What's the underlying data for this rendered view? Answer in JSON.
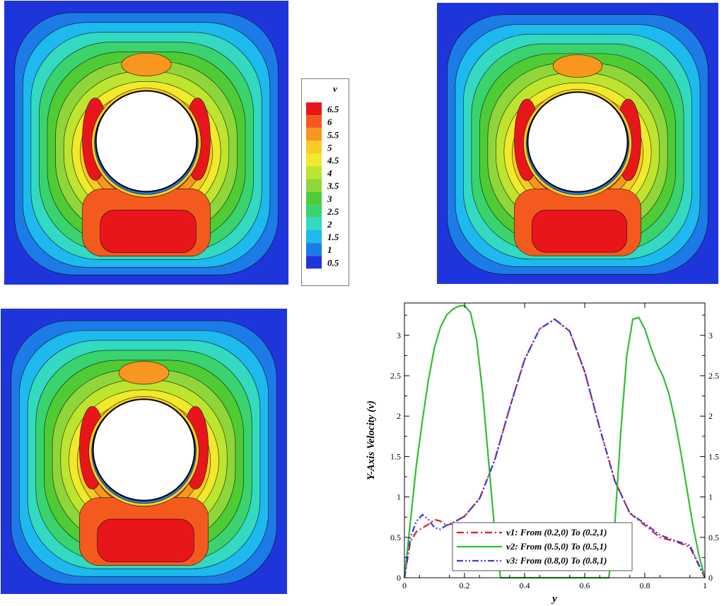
{
  "colorbar": {
    "title": "v",
    "levels": [
      "6.5",
      "6",
      "5.5",
      "5",
      "4.5",
      "4",
      "3.5",
      "3",
      "2.5",
      "2",
      "1.5",
      "1",
      "0.5"
    ],
    "colors": [
      "#e8161b",
      "#f45a1e",
      "#f8961f",
      "#f9cb24",
      "#f0e92c",
      "#bde42f",
      "#8ed63a",
      "#4fcb36",
      "#3ad36e",
      "#33d9c0",
      "#1db9ef",
      "#1c7be6",
      "#1f35dc"
    ]
  },
  "contour_palette": [
    "#1f35dc",
    "#1c7be6",
    "#1db9ef",
    "#33d9c0",
    "#3ad36e",
    "#4fcb36",
    "#8ed63a",
    "#bde42f",
    "#f0e92c",
    "#f9cb24",
    "#f8961f",
    "#f45a1e",
    "#e8161b"
  ],
  "chart_data": {
    "type": "line",
    "xlabel": "y",
    "ylabel": "Y-Axis Velocity (v)",
    "xlim": [
      0,
      1
    ],
    "ylim": [
      0,
      3.4
    ],
    "x_ticks": [
      "0",
      "0.2",
      "0.4",
      "0.6",
      "0.8",
      "1"
    ],
    "y_ticks": [
      "0",
      "0.5",
      "1",
      "1.5",
      "2",
      "2.5",
      "3"
    ],
    "legend_position": "bottom-center",
    "series": [
      {
        "name": "v1: From (0.2,0) To (0.2,1)",
        "color": "#e41a1c",
        "style": "dash-dot",
        "x": [
          0,
          0.02,
          0.04,
          0.06,
          0.08,
          0.1,
          0.12,
          0.14,
          0.16,
          0.2,
          0.25,
          0.3,
          0.35,
          0.4,
          0.45,
          0.5,
          0.55,
          0.6,
          0.65,
          0.7,
          0.75,
          0.8,
          0.85,
          0.9,
          0.95,
          1
        ],
        "y": [
          0,
          0.45,
          0.57,
          0.62,
          0.66,
          0.72,
          0.7,
          0.65,
          0.67,
          0.76,
          0.98,
          1.45,
          2.1,
          2.7,
          3.08,
          3.2,
          3.05,
          2.55,
          1.85,
          1.2,
          0.8,
          0.65,
          0.5,
          0.45,
          0.38,
          0
        ]
      },
      {
        "name": "v2: From (0.5,0) To (0.5,1)",
        "color": "#2fbf2f",
        "style": "solid",
        "x": [
          0,
          0.02,
          0.04,
          0.06,
          0.08,
          0.1,
          0.12,
          0.14,
          0.16,
          0.18,
          0.2,
          0.22,
          0.24,
          0.26,
          0.28,
          0.3,
          0.32,
          0.68,
          0.7,
          0.72,
          0.74,
          0.76,
          0.78,
          0.8,
          0.82,
          0.84,
          0.86,
          0.88,
          0.9,
          0.92,
          0.94,
          0.96,
          0.98,
          1
        ],
        "y": [
          0,
          0.7,
          1.4,
          1.95,
          2.45,
          2.85,
          3.1,
          3.25,
          3.32,
          3.36,
          3.37,
          3.28,
          2.95,
          2.3,
          1.45,
          0.6,
          0,
          0,
          0.65,
          1.8,
          2.75,
          3.2,
          3.22,
          3.08,
          2.85,
          2.65,
          2.5,
          2.28,
          1.95,
          1.55,
          1.1,
          0.65,
          0.28,
          0
        ]
      },
      {
        "name": "v3: From (0.8,0) To (0.8,1)",
        "color": "#3a3ae0",
        "style": "dash-dot-dot",
        "x": [
          0,
          0.02,
          0.04,
          0.06,
          0.08,
          0.1,
          0.12,
          0.14,
          0.16,
          0.2,
          0.25,
          0.3,
          0.35,
          0.4,
          0.45,
          0.5,
          0.55,
          0.6,
          0.65,
          0.7,
          0.75,
          0.8,
          0.85,
          0.9,
          0.95,
          1
        ],
        "y": [
          0,
          0.5,
          0.7,
          0.78,
          0.72,
          0.62,
          0.6,
          0.65,
          0.68,
          0.76,
          0.98,
          1.45,
          2.1,
          2.7,
          3.08,
          3.2,
          3.05,
          2.55,
          1.85,
          1.2,
          0.8,
          0.67,
          0.53,
          0.46,
          0.4,
          0
        ]
      }
    ]
  }
}
